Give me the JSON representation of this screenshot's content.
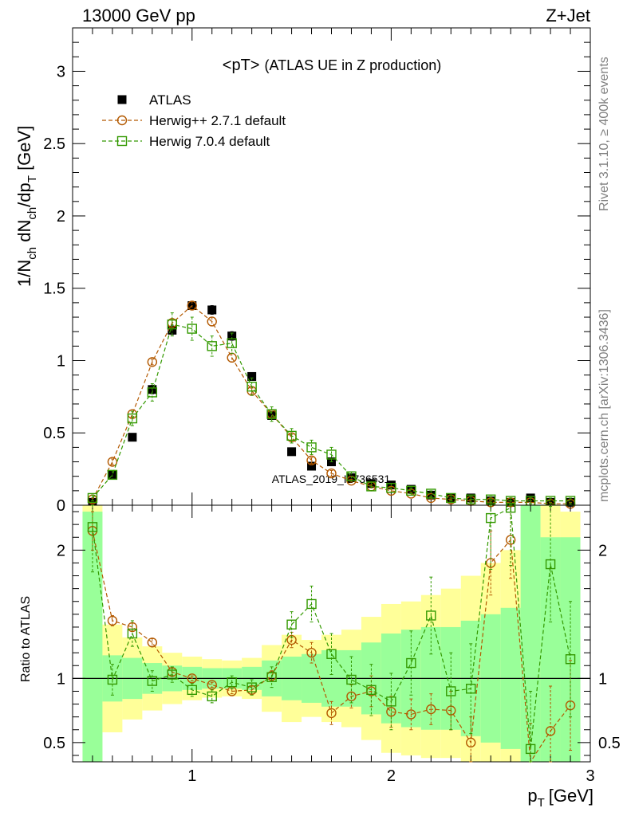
{
  "header": {
    "left": "13000 GeV pp",
    "right": "Z+Jet"
  },
  "side_labels": {
    "rivet": "Rivet 3.1.10, ≥ 400k events",
    "mcplots": "mcplots.cern.ch [arXiv:1306.3436]"
  },
  "watermark": "ATLAS_2019_I1736531",
  "chart_data": [
    {
      "type": "scatter",
      "panel": "main",
      "title": "<pT> (ATLAS UE in Z production)",
      "title_main": "<pT>",
      "title_sub": "(ATLAS UE in Z production)",
      "xlabel": "p_T [GeV]",
      "xlabel_main": "p",
      "xlabel_sub": "T",
      "xlabel_unit": "[GeV]",
      "ylabel": "1/N_ch dN_ch/dp_T [GeV]",
      "ylabel_parts": [
        "1/N",
        "ch",
        " dN",
        "ch",
        "/dp",
        "T",
        " [GeV]"
      ],
      "xlim": [
        0.4,
        3.0
      ],
      "ylim": [
        0,
        3.3
      ],
      "xticks": [
        "1",
        "2",
        "3"
      ],
      "yticks": [
        "0",
        "0.5",
        "1",
        "1.5",
        "2",
        "2.5",
        "3"
      ],
      "legend_position": "top-left",
      "x": [
        0.5,
        0.6,
        0.7,
        0.8,
        0.9,
        1.0,
        1.1,
        1.2,
        1.3,
        1.4,
        1.5,
        1.6,
        1.7,
        1.8,
        1.9,
        2.0,
        2.1,
        2.2,
        2.3,
        2.4,
        2.5,
        2.6,
        2.7,
        2.8,
        2.9
      ],
      "series": [
        {
          "name": "ATLAS",
          "color": "#000000",
          "marker": "filled-square",
          "values": [
            0.02,
            0.21,
            0.47,
            0.8,
            1.21,
            1.38,
            1.35,
            1.17,
            0.89,
            0.62,
            0.37,
            0.27,
            0.3,
            0.19,
            0.15,
            0.14,
            0.11,
            0.07,
            0.05,
            0.05,
            0.03,
            0.02,
            0.05,
            0.02,
            0.02
          ],
          "errors": [
            0.01,
            0.02,
            0.02,
            0.03,
            0.03,
            0.03,
            0.03,
            0.03,
            0.02,
            0.02,
            0.02,
            0.02,
            0.02,
            0.01,
            0.01,
            0.01,
            0.01,
            0.01,
            0.01,
            0.01,
            0.01,
            0.01,
            0.01,
            0.01,
            0.01
          ]
        },
        {
          "name": "Herwig++ 2.7.1 default",
          "color": "#b35900",
          "marker": "open-circle",
          "values": [
            0.04,
            0.3,
            0.63,
            0.99,
            1.26,
            1.38,
            1.27,
            1.02,
            0.79,
            0.63,
            0.47,
            0.31,
            0.22,
            0.17,
            0.13,
            0.1,
            0.08,
            0.05,
            0.04,
            0.03,
            0.02,
            0.02,
            0.02,
            0.01,
            0.01
          ],
          "errors": [
            0.01,
            0.02,
            0.02,
            0.02,
            0.03,
            0.03,
            0.03,
            0.03,
            0.02,
            0.02,
            0.02,
            0.02,
            0.02,
            0.01,
            0.01,
            0.01,
            0.01,
            0.01,
            0.01,
            0.01,
            0.01,
            0.01,
            0.01,
            0.01,
            0.01
          ]
        },
        {
          "name": "Herwig 7.0.4 default",
          "color": "#339900",
          "marker": "open-square",
          "values": [
            0.05,
            0.21,
            0.6,
            0.78,
            1.25,
            1.22,
            1.1,
            1.12,
            0.82,
            0.63,
            0.48,
            0.4,
            0.35,
            0.2,
            0.13,
            0.12,
            0.1,
            0.08,
            0.05,
            0.04,
            0.04,
            0.03,
            0.03,
            0.03,
            0.03
          ],
          "errors": [
            0.02,
            0.03,
            0.05,
            0.06,
            0.08,
            0.08,
            0.07,
            0.07,
            0.06,
            0.05,
            0.05,
            0.05,
            0.05,
            0.03,
            0.03,
            0.03,
            0.02,
            0.02,
            0.02,
            0.02,
            0.02,
            0.02,
            0.02,
            0.02,
            0.02
          ]
        }
      ]
    },
    {
      "type": "scatter",
      "panel": "ratio",
      "ylabel": "Ratio to ATLAS",
      "xlim": [
        0.4,
        3.0
      ],
      "ylim": [
        0.35,
        2.35
      ],
      "yticks": [
        "0.5",
        "1",
        "2"
      ],
      "reference_line": 1.0,
      "bands": {
        "x_edges": [
          0.45,
          0.55,
          0.65,
          0.75,
          0.85,
          0.95,
          1.05,
          1.15,
          1.25,
          1.35,
          1.45,
          1.55,
          1.65,
          1.75,
          1.85,
          1.95,
          2.05,
          2.15,
          2.25,
          2.35,
          2.45,
          2.55,
          2.65,
          2.75,
          2.85,
          2.95
        ],
        "green_low": [
          0.35,
          0.82,
          0.84,
          0.88,
          0.9,
          0.91,
          0.92,
          0.92,
          0.91,
          0.86,
          0.83,
          0.81,
          0.78,
          0.78,
          0.72,
          0.65,
          0.62,
          0.6,
          0.6,
          0.55,
          0.5,
          0.45,
          0.35,
          0.35,
          0.35
        ],
        "green_high": [
          2.3,
          1.18,
          1.16,
          1.12,
          1.1,
          1.09,
          1.08,
          1.08,
          1.09,
          1.14,
          1.17,
          1.19,
          1.22,
          1.22,
          1.28,
          1.35,
          1.38,
          1.4,
          1.4,
          1.45,
          1.5,
          1.55,
          2.35,
          2.1,
          2.1
        ],
        "yellow_low": [
          0.35,
          0.58,
          0.68,
          0.75,
          0.8,
          0.83,
          0.85,
          0.86,
          0.84,
          0.74,
          0.66,
          0.7,
          0.66,
          0.62,
          0.52,
          0.42,
          0.4,
          0.38,
          0.38,
          0.35,
          0.35,
          0.35,
          0.35,
          0.35,
          0.35
        ],
        "yellow_high": [
          2.35,
          1.42,
          1.32,
          1.25,
          1.2,
          1.17,
          1.15,
          1.14,
          1.16,
          1.26,
          1.34,
          1.3,
          1.34,
          1.38,
          1.48,
          1.58,
          1.6,
          1.65,
          1.7,
          1.8,
          1.9,
          2.0,
          2.35,
          2.35,
          2.3
        ]
      },
      "x": [
        0.5,
        0.6,
        0.7,
        0.8,
        0.9,
        1.0,
        1.1,
        1.2,
        1.3,
        1.4,
        1.5,
        1.6,
        1.7,
        1.8,
        1.9,
        2.0,
        2.1,
        2.2,
        2.3,
        2.4,
        2.5,
        2.6,
        2.7,
        2.8,
        2.9
      ],
      "series": [
        {
          "name": "Herwig++ 2.7.1 default",
          "color": "#b35900",
          "marker": "open-circle",
          "values": [
            2.15,
            1.45,
            1.4,
            1.28,
            1.05,
            1.0,
            0.95,
            0.9,
            0.91,
            1.02,
            1.3,
            1.2,
            0.73,
            0.86,
            0.9,
            0.74,
            0.72,
            0.76,
            0.75,
            0.5,
            1.9,
            2.08,
            0.35,
            0.59,
            0.79
          ],
          "errors": [
            0.15,
            0.04,
            0.03,
            0.03,
            0.03,
            0.02,
            0.02,
            0.02,
            0.03,
            0.04,
            0.06,
            0.08,
            0.09,
            0.09,
            0.12,
            0.12,
            0.12,
            0.12,
            0.15,
            0.2,
            0.25,
            0.3,
            0.3,
            0.35,
            0.35
          ]
        },
        {
          "name": "Herwig 7.0.4 default",
          "color": "#339900",
          "marker": "open-square",
          "values": [
            2.18,
            0.99,
            1.35,
            0.98,
            1.03,
            0.91,
            0.86,
            0.97,
            0.93,
            1.01,
            1.42,
            1.58,
            1.19,
            0.99,
            0.91,
            0.82,
            1.12,
            1.49,
            0.9,
            0.92,
            2.25,
            2.33,
            0.45,
            1.89,
            1.15
          ],
          "errors": [
            0.35,
            0.12,
            0.1,
            0.08,
            0.06,
            0.05,
            0.05,
            0.05,
            0.06,
            0.08,
            0.1,
            0.14,
            0.16,
            0.18,
            0.2,
            0.22,
            0.25,
            0.3,
            0.3,
            0.35,
            0.4,
            0.45,
            0.45,
            0.45,
            0.45
          ]
        }
      ]
    }
  ]
}
